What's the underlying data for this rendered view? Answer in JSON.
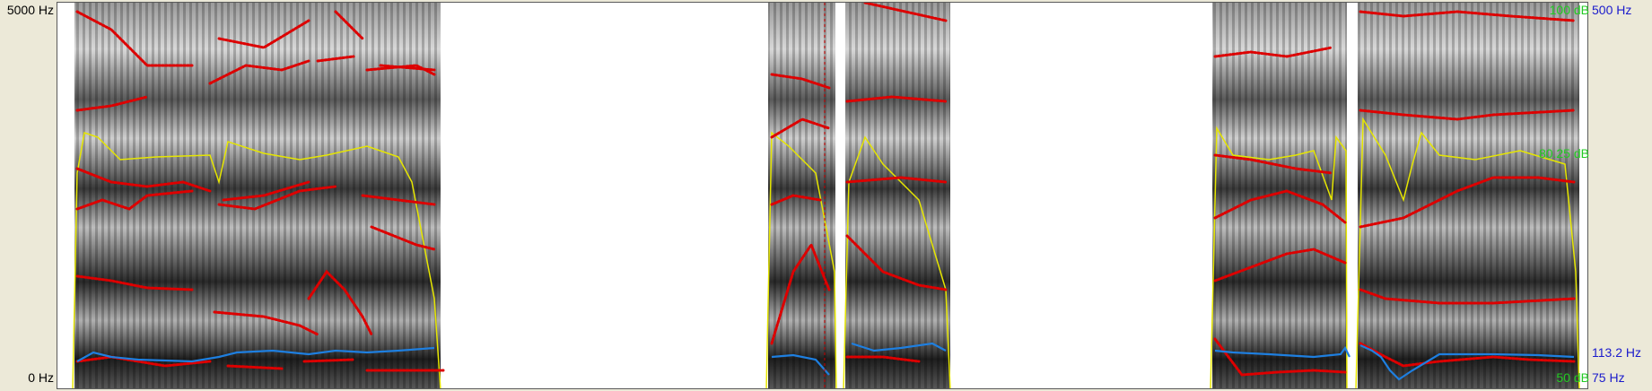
{
  "axes": {
    "frequency_top": "5000 Hz",
    "frequency_bottom": "0 Hz",
    "intensity_top": "100 dB",
    "intensity_mid": "80.25 dB",
    "intensity_bottom": "50 dB",
    "pitch_top": "500 Hz",
    "pitch_cursor": "113.2 Hz",
    "pitch_bottom": "75 Hz"
  },
  "colors": {
    "spectrogram_dark": "#1e1e1e",
    "spectrogram_light": "#ffffff",
    "formants": "#dd0000",
    "intensity_curve": "#e6e600",
    "pitch_curve": "#1e7fe0",
    "cursor": "#cc0000",
    "intensity_labels": "#22cc22",
    "pitch_labels": "#1a1acc"
  }
}
